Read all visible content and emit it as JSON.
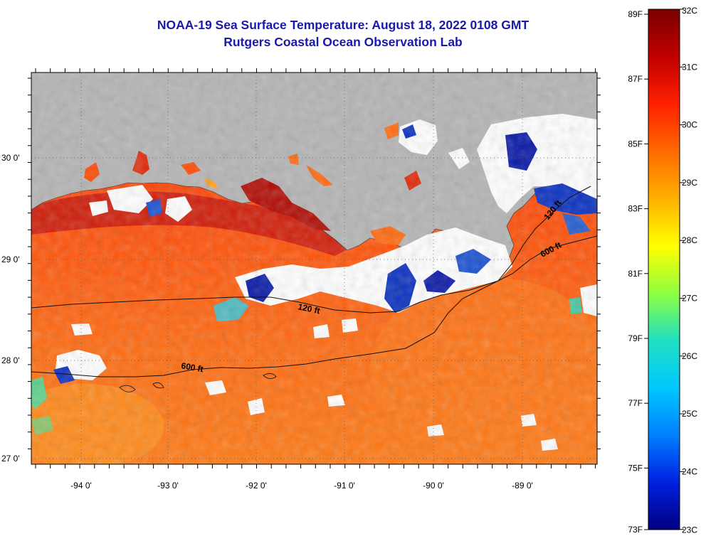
{
  "title": "NOAA-19 Sea Surface Temperature:  August 18, 2022 0108 GMT",
  "subtitle": "Rutgers Coastal Ocean Observation Lab",
  "map": {
    "lat_labels": [
      "30 0'",
      "29 0'",
      "28 0'",
      "27 0'"
    ],
    "lon_labels": [
      "-94 0'",
      "-93 0'",
      "-92 0'",
      "-91 0'",
      "-90 0'",
      "-89 0'"
    ],
    "contour_labels": [
      "120 ft",
      "600 ft",
      "120 ft",
      "600 ft"
    ],
    "land_color": "#b4b4b4",
    "cloud_color": "#ffffff"
  },
  "colorbar": {
    "fahrenheit_labels": [
      "89F",
      "87F",
      "85F",
      "83F",
      "81F",
      "79F",
      "77F",
      "75F",
      "73F"
    ],
    "celsius_labels": [
      "32C",
      "31C",
      "30C",
      "29C",
      "28C",
      "27C",
      "26C",
      "25C",
      "24C",
      "23C"
    ],
    "colors": [
      "#7a0000",
      "#c00000",
      "#ff2000",
      "#ff6a00",
      "#ffb000",
      "#ffff00",
      "#90ff40",
      "#20e0c0",
      "#00c8ff",
      "#0080ff",
      "#0020e0",
      "#000080"
    ]
  }
}
